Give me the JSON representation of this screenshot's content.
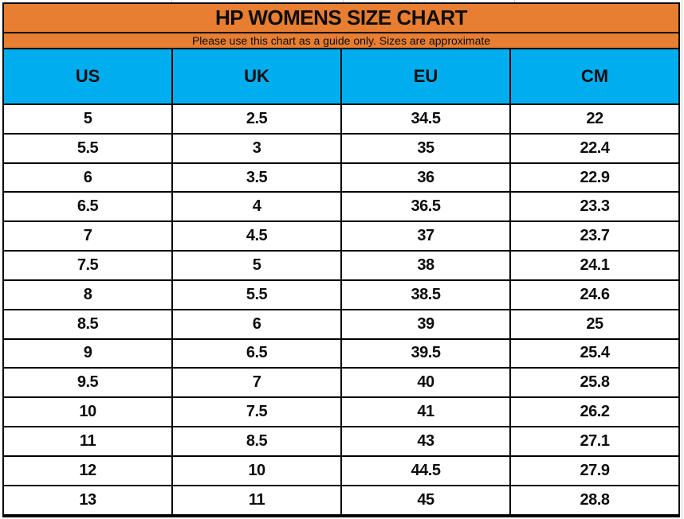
{
  "title": "HP WOMENS SIZE CHART",
  "subtitle": "Please use this chart as a guide only. Sizes are approximate",
  "colors": {
    "header_band_orange": "#E87E31",
    "column_header_blue": "#00AEEF",
    "grid_border_black": "#000000",
    "row_background_white": "#FFFFFF",
    "text_black": "#0D0D0D"
  },
  "chart_data": {
    "type": "table",
    "title": "HP WOMENS SIZE CHART",
    "subtitle": "Please use this chart as a guide only. Sizes are approximate",
    "columns": [
      "US",
      "UK",
      "EU",
      "CM"
    ],
    "rows": [
      [
        "5",
        "2.5",
        "34.5",
        "22"
      ],
      [
        "5.5",
        "3",
        "35",
        "22.4"
      ],
      [
        "6",
        "3.5",
        "36",
        "22.9"
      ],
      [
        "6.5",
        "4",
        "36.5",
        "23.3"
      ],
      [
        "7",
        "4.5",
        "37",
        "23.7"
      ],
      [
        "7.5",
        "5",
        "38",
        "24.1"
      ],
      [
        "8",
        "5.5",
        "38.5",
        "24.6"
      ],
      [
        "8.5",
        "6",
        "39",
        "25"
      ],
      [
        "9",
        "6.5",
        "39.5",
        "25.4"
      ],
      [
        "9.5",
        "7",
        "40",
        "25.8"
      ],
      [
        "10",
        "7.5",
        "41",
        "26.2"
      ],
      [
        "11",
        "8.5",
        "43",
        "27.1"
      ],
      [
        "12",
        "10",
        "44.5",
        "27.9"
      ],
      [
        "13",
        "11",
        "45",
        "28.8"
      ]
    ]
  }
}
